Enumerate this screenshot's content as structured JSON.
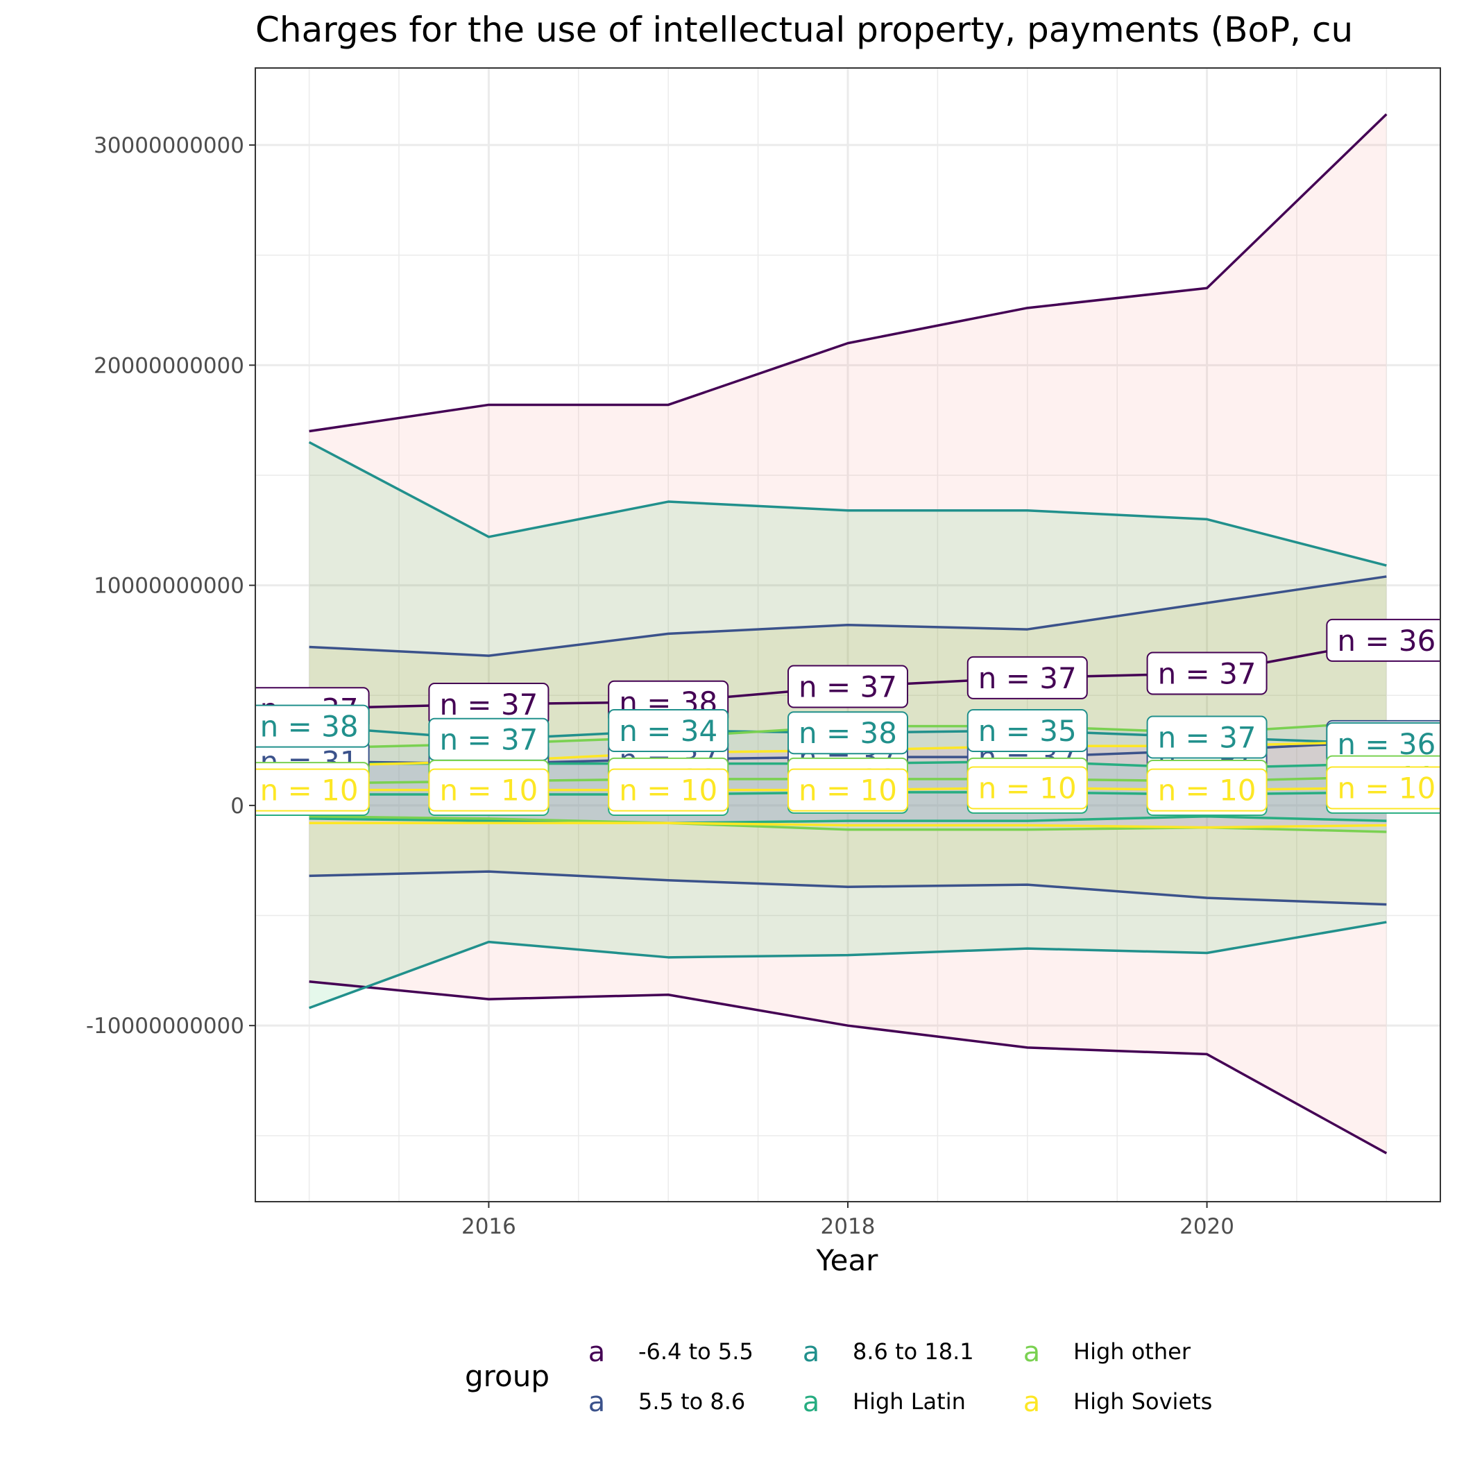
{
  "chart_data": {
    "type": "line",
    "title": "Charges for the use of intellectual property, payments (BoP, cu",
    "xlabel": "Year",
    "ylabel": "",
    "x": [
      2015,
      2016,
      2017,
      2018,
      2019,
      2020,
      2021
    ],
    "xlim": [
      2014.7,
      2021.3
    ],
    "xticks": [
      "2016",
      "2018",
      "2020"
    ],
    "ylim": [
      -18000000000,
      33500000000
    ],
    "yticks": [
      "30000000000",
      "20000000000",
      "10000000000",
      "0",
      "-10000000000"
    ],
    "grid": true,
    "legend": {
      "title": "group",
      "position": "bottom",
      "key_glyph": "a"
    },
    "series": [
      {
        "name": "-6.4 to 5.5",
        "color": "#440154",
        "fill": "#F8766D",
        "mean": [
          4400000000,
          4600000000,
          4700000000,
          5400000000,
          5800000000,
          6000000000,
          7500000000
        ],
        "upper": [
          17000000000,
          18200000000,
          18200000000,
          21000000000,
          22600000000,
          23500000000,
          31400000000
        ],
        "lower": [
          -8000000000,
          -8800000000,
          -8600000000,
          -10000000000,
          -11000000000,
          -11300000000,
          -15800000000
        ],
        "n_labels": [
          "n = 37",
          "n = 37",
          "n = 38",
          "n = 37",
          "n = 37",
          "n = 37",
          "n = 36"
        ]
      },
      {
        "name": "5.5 to 8.6",
        "color": "#3B528B",
        "fill": "#B79F00",
        "mean": [
          2000000000,
          1900000000,
          2100000000,
          2200000000,
          2200000000,
          2500000000,
          2900000000
        ],
        "upper": [
          7200000000,
          6800000000,
          7800000000,
          8200000000,
          8000000000,
          9200000000,
          10400000000
        ],
        "lower": [
          -3200000000,
          -3000000000,
          -3400000000,
          -3700000000,
          -3600000000,
          -4200000000,
          -4500000000
        ],
        "n_labels": [
          "n = 31",
          "n = 37",
          "n = 37",
          "n = 37",
          "n = 37",
          "n = 37",
          "n = 36"
        ]
      },
      {
        "name": "8.6 to 18.1",
        "color": "#21908C",
        "fill": "#00BA38",
        "mean": [
          3600000000,
          3000000000,
          3400000000,
          3300000000,
          3400000000,
          3100000000,
          2800000000
        ],
        "upper": [
          16500000000,
          12200000000,
          13800000000,
          13400000000,
          13400000000,
          13000000000,
          10900000000
        ],
        "lower": [
          -9200000000,
          -6200000000,
          -6900000000,
          -6800000000,
          -6500000000,
          -6700000000,
          -5300000000
        ],
        "n_labels": [
          "n = 38",
          "n = 37",
          "n = 34",
          "n = 38",
          "n = 35",
          "n = 37",
          "n = 36"
        ]
      },
      {
        "name": "High Latin",
        "color": "#27AD81",
        "fill": "#00BFC4",
        "mean": [
          500000000,
          500000000,
          500000000,
          600000000,
          600000000,
          500000000,
          600000000
        ],
        "upper": [
          1900000000,
          1900000000,
          1900000000,
          1900000000,
          2000000000,
          1700000000,
          1900000000
        ],
        "lower": [
          -600000000,
          -700000000,
          -800000000,
          -700000000,
          -700000000,
          -500000000,
          -700000000
        ],
        "n_labels": [
          "n = 10",
          "n = 10",
          "n = 10",
          "n = 10",
          "n = 10",
          "n = 10",
          "n = 10"
        ]
      },
      {
        "name": "High other",
        "color": "#7AD151",
        "fill": "#619CFF",
        "mean": [
          1000000000,
          1100000000,
          1200000000,
          1200000000,
          1200000000,
          1100000000,
          1300000000
        ],
        "upper": [
          2600000000,
          2800000000,
          3100000000,
          3600000000,
          3600000000,
          3300000000,
          3800000000
        ],
        "lower": [
          -500000000,
          -600000000,
          -800000000,
          -1100000000,
          -1100000000,
          -1000000000,
          -1200000000
        ],
        "n_labels": [
          "n = 10",
          "n = 10",
          "n = 11",
          "n = 11",
          "n = 11",
          "n = 11",
          "n = 11"
        ]
      },
      {
        "name": "High Soviets",
        "color": "#FDE725",
        "fill": "#F564E3",
        "mean": [
          700000000,
          700000000,
          700000000,
          700000000,
          800000000,
          700000000,
          800000000
        ],
        "upper": [
          1800000000,
          2000000000,
          2400000000,
          2500000000,
          2700000000,
          2700000000,
          2900000000
        ],
        "lower": [
          -800000000,
          -800000000,
          -800000000,
          -900000000,
          -900000000,
          -1000000000,
          -900000000
        ],
        "n_labels": [
          "n = 10",
          "n = 10",
          "n = 10",
          "n = 10",
          "n = 10",
          "n = 10",
          "n = 10"
        ]
      }
    ]
  }
}
